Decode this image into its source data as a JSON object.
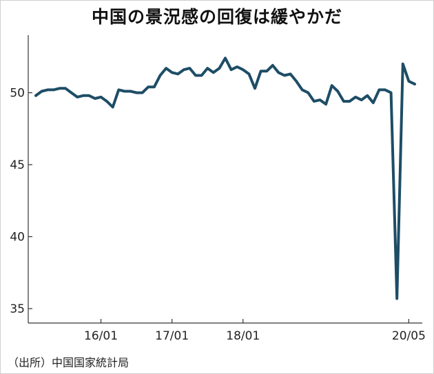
{
  "chart_data": {
    "type": "line",
    "title": "中国の景況感の回復は緩やかだ",
    "source": "（出所）中国国家統計局",
    "xlabel": "",
    "ylabel": "",
    "ylim": [
      34,
      54
    ],
    "yticks": [
      35,
      40,
      45,
      50
    ],
    "xticks": [
      {
        "label": "16/01",
        "index": 11
      },
      {
        "label": "17/01",
        "index": 23
      },
      {
        "label": "18/01",
        "index": 35
      },
      {
        "label": "20/05",
        "index": 63
      }
    ],
    "grid": false,
    "line_color": "#1e4d66",
    "series": [
      {
        "values": [
          49.8,
          50.1,
          50.2,
          50.2,
          50.3,
          50.3,
          50.0,
          49.7,
          49.8,
          49.8,
          49.6,
          49.7,
          49.4,
          49.0,
          50.2,
          50.1,
          50.1,
          50.0,
          50.0,
          50.4,
          50.4,
          51.2,
          51.7,
          51.4,
          51.3,
          51.6,
          51.7,
          51.2,
          51.2,
          51.7,
          51.4,
          51.7,
          52.4,
          51.6,
          51.8,
          51.6,
          51.3,
          50.3,
          51.5,
          51.5,
          51.9,
          51.4,
          51.2,
          51.3,
          50.8,
          50.2,
          50.0,
          49.4,
          49.5,
          49.2,
          50.5,
          50.1,
          49.4,
          49.4,
          49.7,
          49.5,
          49.8,
          49.3,
          50.2,
          50.2,
          50.0,
          35.7,
          52.0,
          50.8,
          50.6
        ]
      }
    ]
  }
}
